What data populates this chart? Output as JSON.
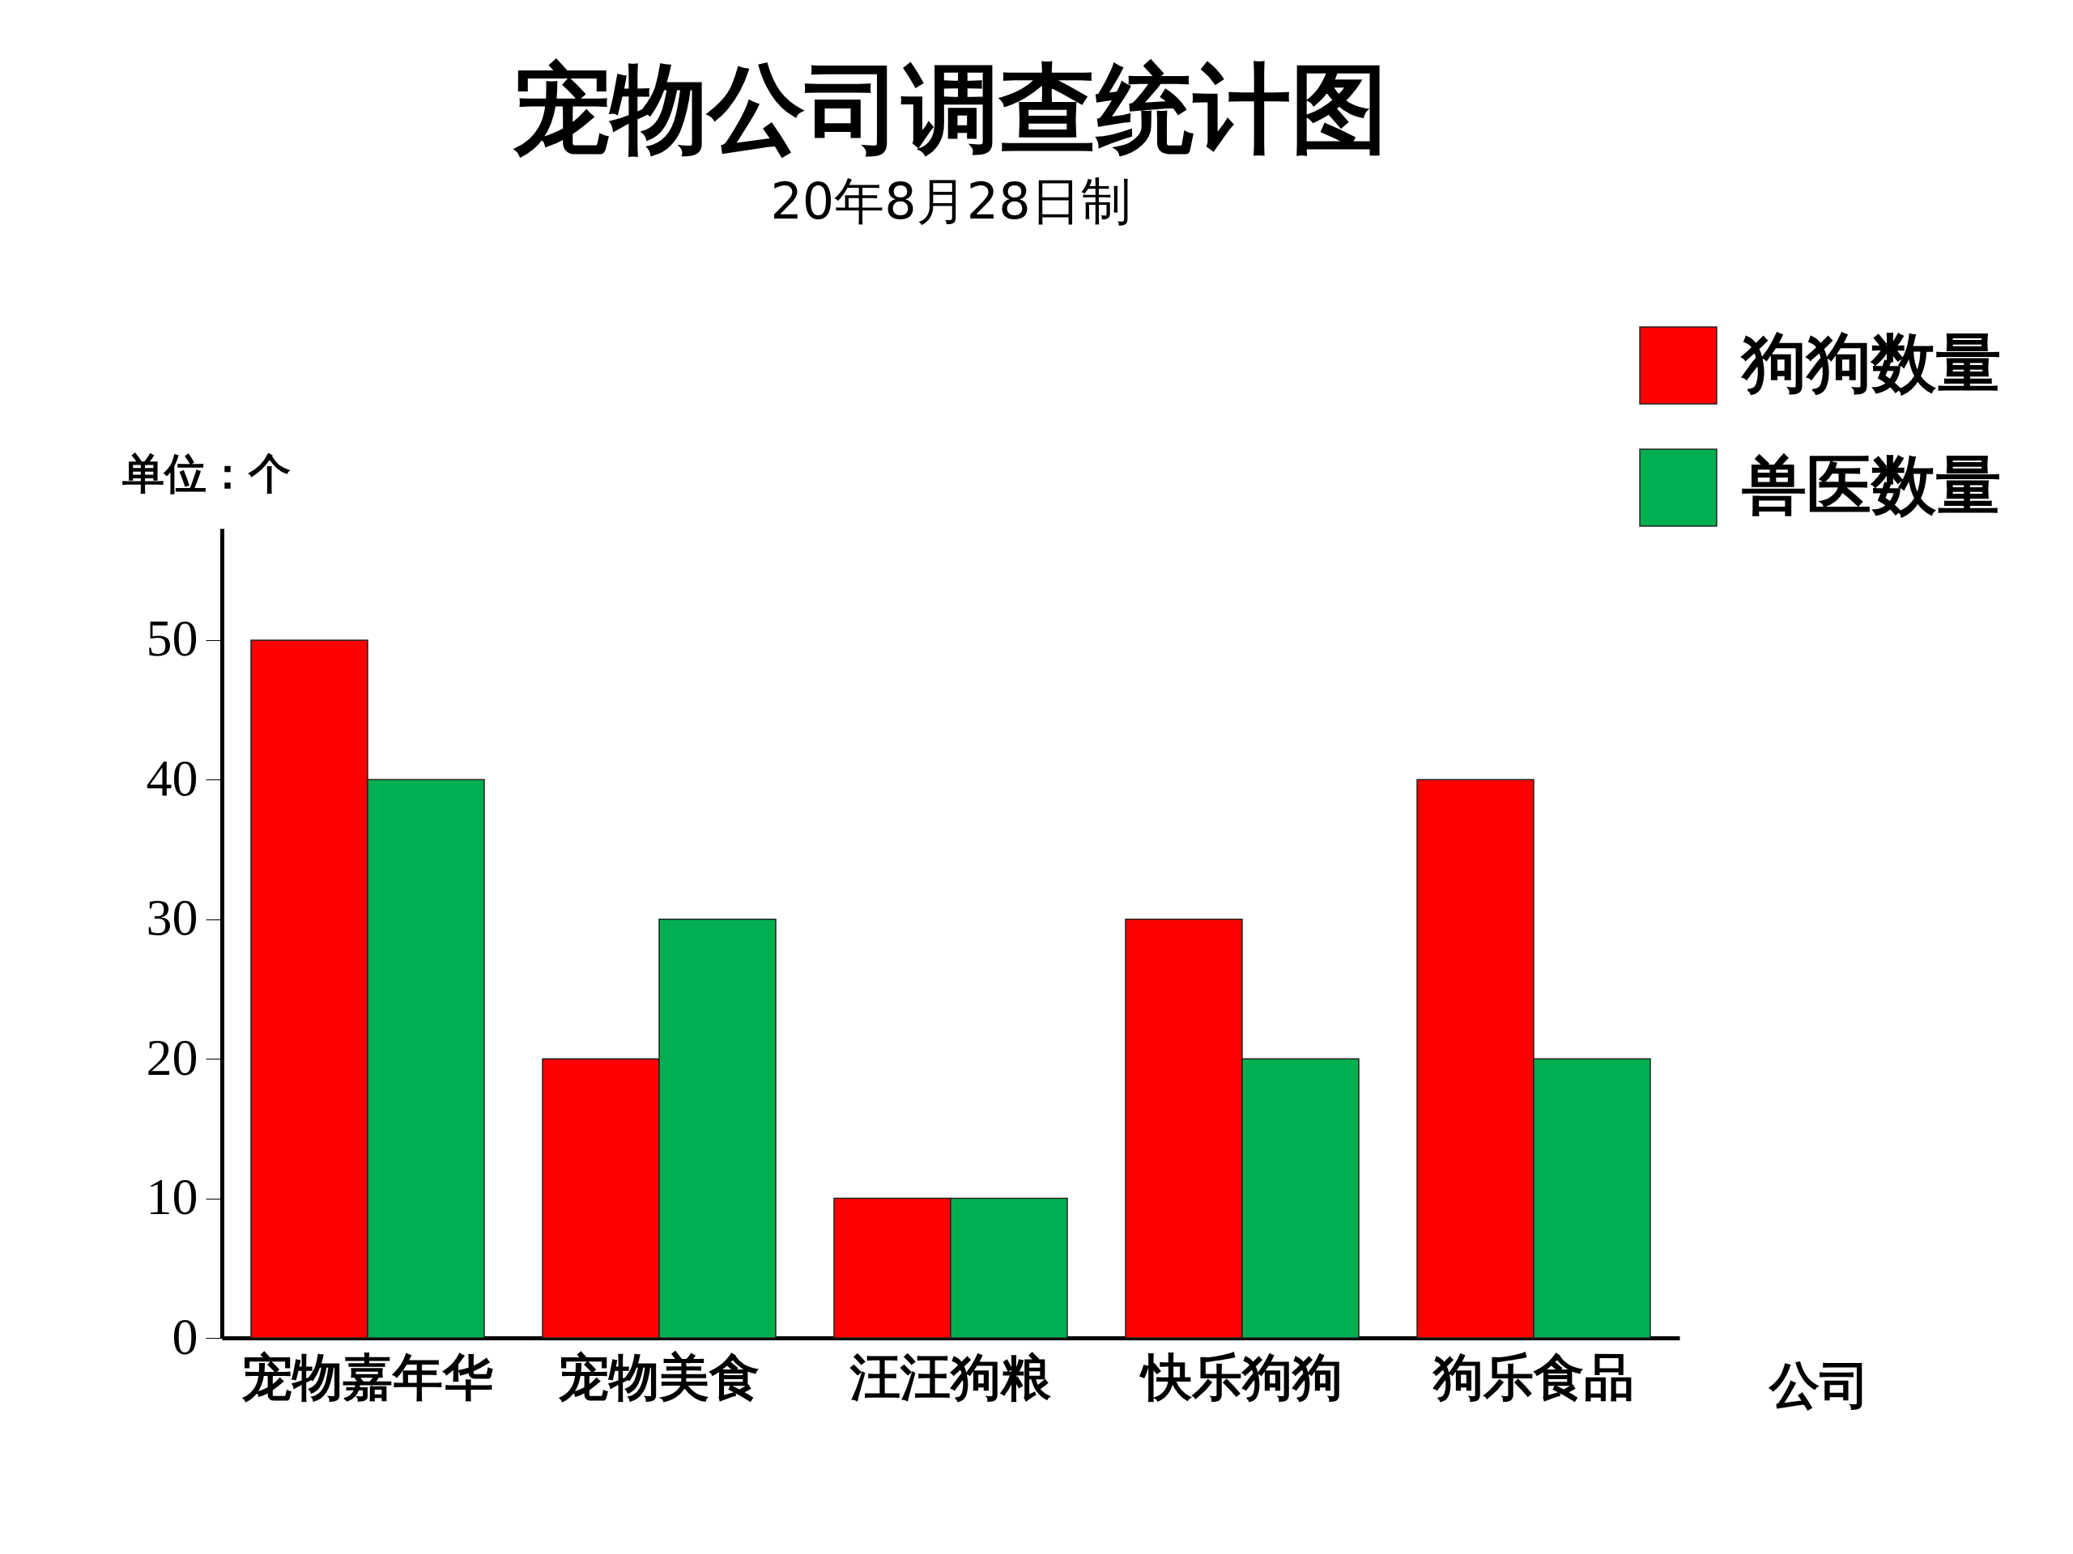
{
  "chart_data": {
    "type": "bar",
    "title": "宠物公司调查统计图",
    "subtitle": "20年8月28日制",
    "ylabel": "单位：个",
    "xlabel": "公司",
    "categories": [
      "宠物嘉年华",
      "宠物美食",
      "汪汪狗粮",
      "快乐狗狗",
      "狗乐食品"
    ],
    "series": [
      {
        "name": "狗狗数量",
        "color": "#ff0000",
        "values": [
          50,
          20,
          10,
          30,
          40
        ]
      },
      {
        "name": "兽医数量",
        "color": "#00b050",
        "values": [
          40,
          30,
          10,
          20,
          20
        ]
      }
    ],
    "ylim": [
      0,
      58
    ],
    "yticks": [
      0,
      10,
      20,
      30,
      40,
      50
    ],
    "grid": false,
    "legend": "top right"
  }
}
